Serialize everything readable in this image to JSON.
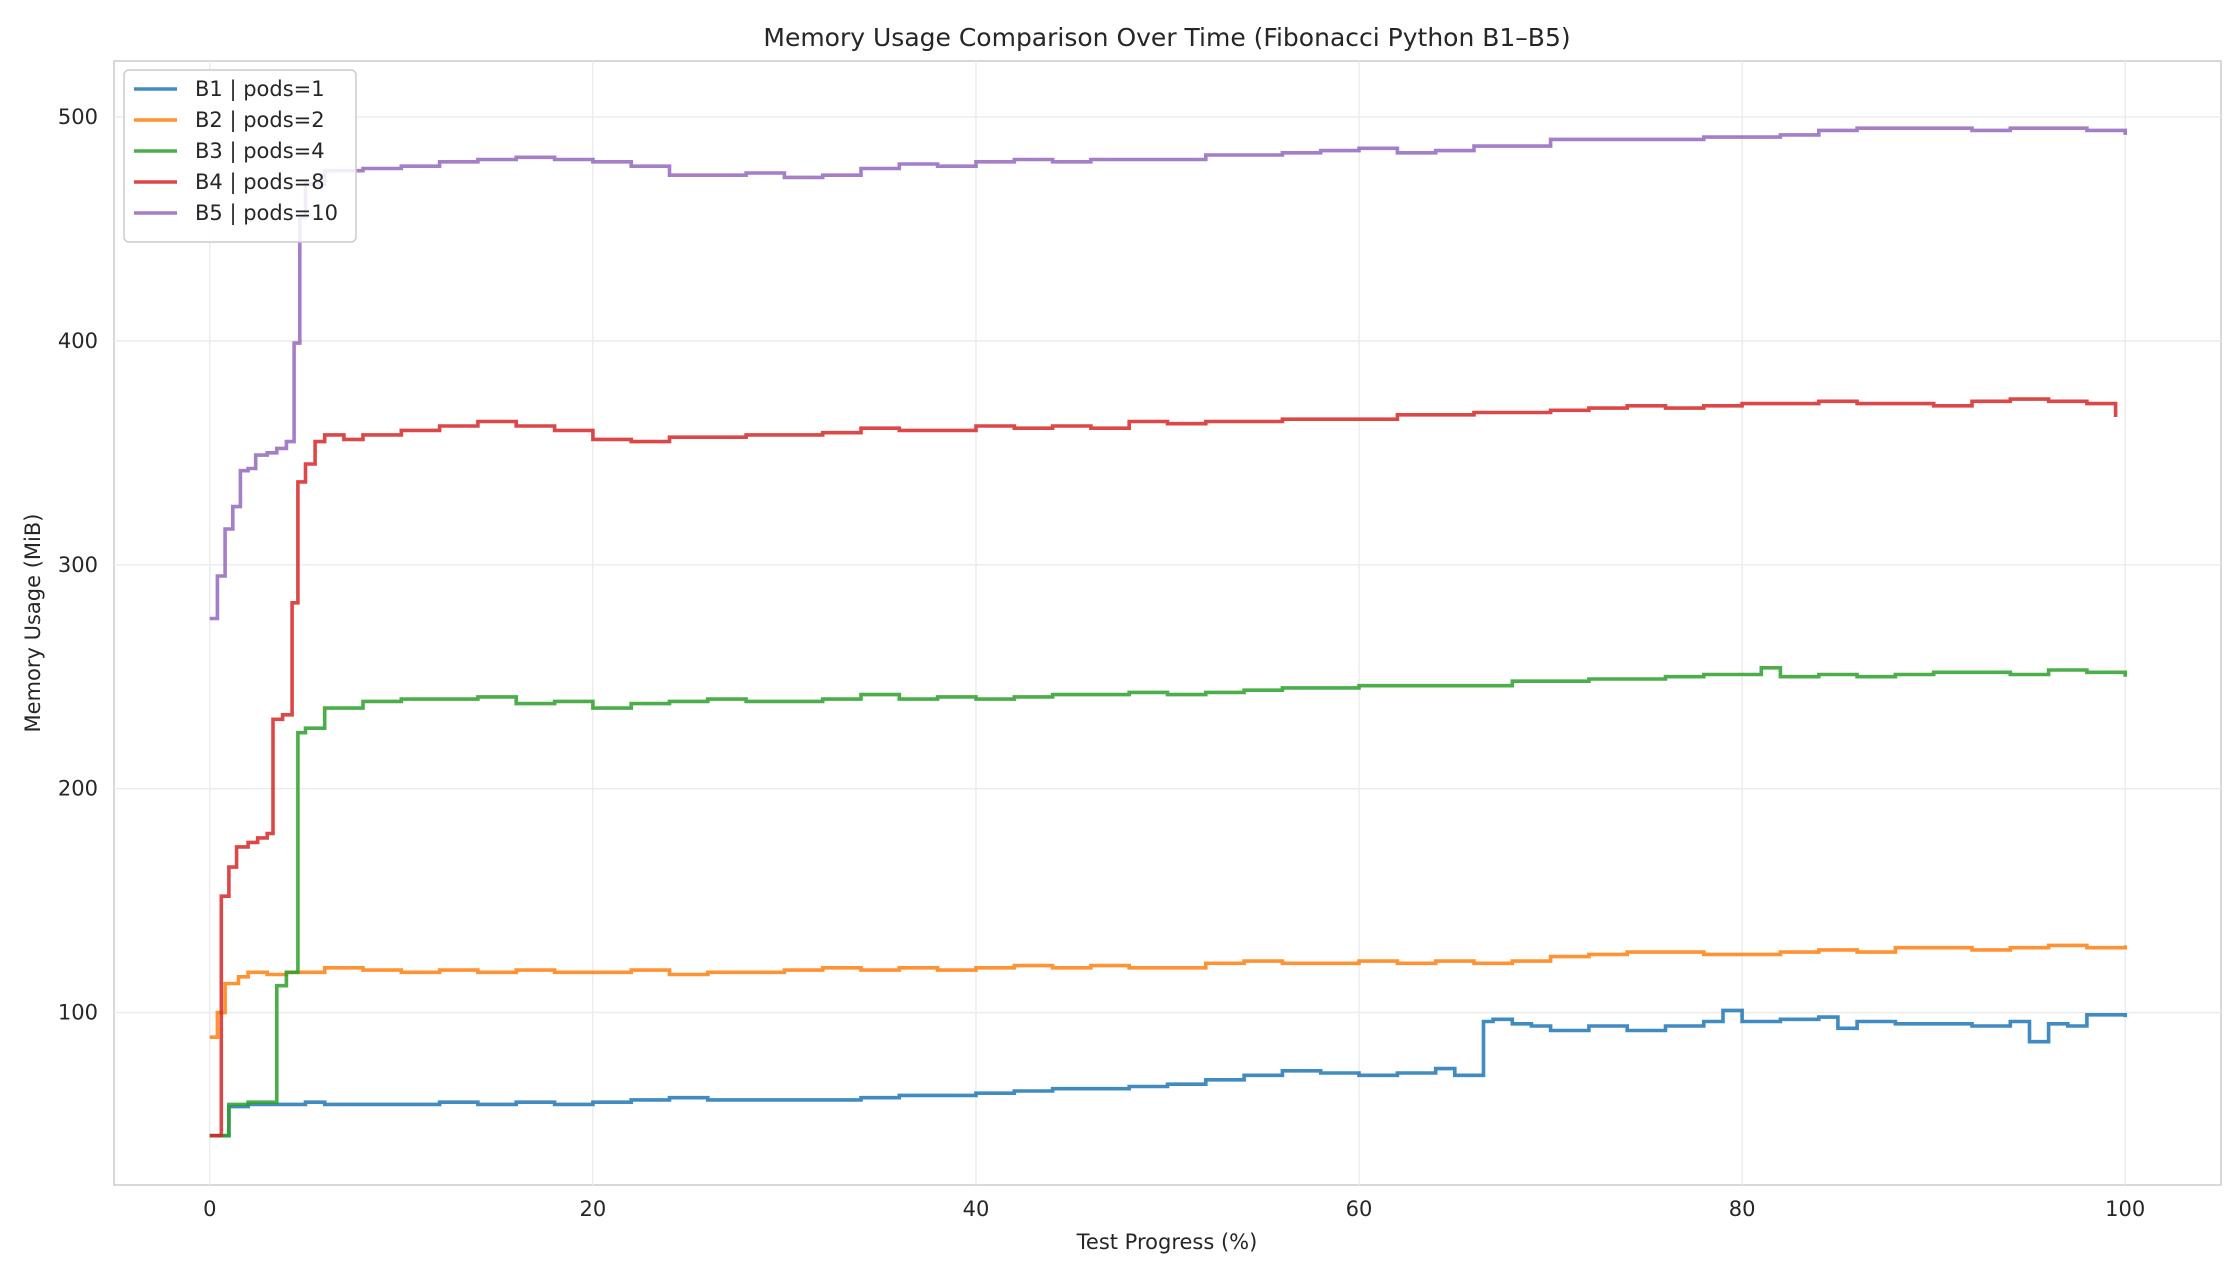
{
  "chart_data": {
    "type": "line",
    "title": "Memory Usage Comparison Over Time (Fibonacci Python B1–B5)",
    "xlabel": "Test Progress (%)",
    "ylabel": "Memory Usage (MiB)",
    "xlim": [
      -5,
      105
    ],
    "ylim": [
      23,
      525
    ],
    "x_ticks": [
      0,
      20,
      40,
      60,
      80,
      100
    ],
    "y_ticks": [
      100,
      200,
      300,
      400,
      500
    ],
    "grid": true,
    "legend_position": "top-left",
    "step": true,
    "series": [
      {
        "name": "B1 | pods=1",
        "color": "#1f77b4",
        "x": [
          0,
          0.5,
          1,
          2,
          3,
          4,
          5,
          6,
          8,
          10,
          12,
          14,
          16,
          18,
          20,
          22,
          24,
          26,
          28,
          30,
          32,
          34,
          36,
          38,
          40,
          42,
          44,
          46,
          48,
          50,
          52,
          54,
          56,
          58,
          60,
          62,
          64,
          65,
          66,
          66.5,
          67,
          68,
          69,
          70,
          72,
          74,
          76,
          78,
          79,
          80,
          82,
          84,
          85,
          86,
          88,
          90,
          92,
          94,
          95,
          96,
          97,
          98,
          100
        ],
        "values": [
          45,
          45,
          58,
          59,
          59,
          59,
          60,
          59,
          59,
          59,
          60,
          59,
          60,
          59,
          60,
          61,
          62,
          61,
          61,
          61,
          61,
          62,
          63,
          63,
          64,
          65,
          66,
          66,
          67,
          68,
          70,
          72,
          74,
          73,
          72,
          73,
          75,
          72,
          72,
          96,
          97,
          95,
          94,
          92,
          94,
          92,
          94,
          96,
          101,
          96,
          97,
          98,
          93,
          96,
          95,
          95,
          94,
          96,
          87,
          95,
          94,
          99,
          98
        ]
      },
      {
        "name": "B2 | pods=2",
        "color": "#ff7f0e",
        "x": [
          0,
          0.4,
          0.8,
          1.5,
          2,
          3,
          4,
          6,
          8,
          10,
          12,
          14,
          16,
          18,
          20,
          22,
          24,
          26,
          28,
          30,
          32,
          34,
          36,
          38,
          40,
          42,
          44,
          46,
          48,
          50,
          52,
          54,
          56,
          58,
          60,
          62,
          64,
          66,
          68,
          70,
          72,
          74,
          76,
          78,
          80,
          82,
          84,
          86,
          88,
          90,
          92,
          94,
          96,
          98,
          100
        ],
        "values": [
          89,
          100,
          113,
          116,
          118,
          117,
          118,
          120,
          119,
          118,
          119,
          118,
          119,
          118,
          118,
          119,
          117,
          118,
          118,
          119,
          120,
          119,
          120,
          119,
          120,
          121,
          120,
          121,
          120,
          120,
          122,
          123,
          122,
          122,
          123,
          122,
          123,
          122,
          123,
          125,
          126,
          127,
          127,
          126,
          126,
          127,
          128,
          127,
          129,
          129,
          128,
          129,
          130,
          129,
          130
        ]
      },
      {
        "name": "B3 | pods=4",
        "color": "#2ca02c",
        "x": [
          0,
          0.5,
          1,
          2,
          3,
          3.5,
          4,
          4.2,
          4.6,
          5,
          6,
          8,
          10,
          12,
          14,
          16,
          18,
          20,
          22,
          24,
          26,
          28,
          30,
          32,
          34,
          36,
          38,
          40,
          42,
          44,
          46,
          48,
          50,
          52,
          54,
          56,
          58,
          60,
          62,
          64,
          66,
          68,
          70,
          72,
          74,
          76,
          78,
          80,
          81,
          82,
          84,
          86,
          88,
          90,
          92,
          94,
          96,
          98,
          100
        ],
        "values": [
          45,
          45,
          59,
          60,
          60,
          112,
          118,
          118,
          225,
          227,
          236,
          239,
          240,
          240,
          241,
          238,
          239,
          236,
          238,
          239,
          240,
          239,
          239,
          240,
          242,
          240,
          241,
          240,
          241,
          242,
          242,
          243,
          242,
          243,
          244,
          245,
          245,
          246,
          246,
          246,
          246,
          248,
          248,
          249,
          249,
          250,
          251,
          251,
          254,
          250,
          251,
          250,
          251,
          252,
          252,
          251,
          253,
          252,
          250
        ]
      },
      {
        "name": "B4 | pods=8",
        "color": "#d62728",
        "x": [
          0,
          0.3,
          0.6,
          1,
          1.4,
          2,
          2.5,
          3,
          3.3,
          3.8,
          4.3,
          4.6,
          5,
          5.5,
          6,
          7,
          8,
          10,
          12,
          14,
          16,
          18,
          20,
          22,
          24,
          26,
          28,
          30,
          32,
          34,
          36,
          38,
          40,
          42,
          44,
          46,
          48,
          50,
          52,
          54,
          56,
          58,
          60,
          62,
          64,
          66,
          68,
          70,
          72,
          74,
          76,
          78,
          80,
          82,
          84,
          86,
          88,
          90,
          92,
          94,
          96,
          98,
          99.5
        ],
        "values": [
          45,
          45,
          152,
          165,
          174,
          176,
          178,
          180,
          231,
          233,
          283,
          337,
          345,
          355,
          358,
          356,
          358,
          360,
          362,
          364,
          362,
          360,
          356,
          355,
          357,
          357,
          358,
          358,
          359,
          361,
          360,
          360,
          362,
          361,
          362,
          361,
          364,
          363,
          364,
          364,
          365,
          365,
          365,
          367,
          367,
          368,
          368,
          369,
          370,
          371,
          370,
          371,
          372,
          372,
          373,
          372,
          372,
          371,
          373,
          374,
          373,
          372,
          366
        ]
      },
      {
        "name": "B5 | pods=10",
        "color": "#9467bd",
        "x": [
          0,
          0.4,
          0.8,
          1.2,
          1.6,
          2,
          2.4,
          3,
          3.5,
          4,
          4.4,
          4.7,
          5,
          6,
          8,
          10,
          12,
          14,
          16,
          18,
          20,
          22,
          24,
          26,
          28,
          30,
          32,
          34,
          36,
          38,
          40,
          42,
          44,
          46,
          48,
          50,
          52,
          54,
          56,
          58,
          60,
          62,
          64,
          66,
          68,
          70,
          72,
          74,
          76,
          78,
          80,
          82,
          84,
          86,
          88,
          90,
          92,
          94,
          96,
          98,
          100
        ],
        "values": [
          276,
          295,
          316,
          326,
          342,
          343,
          349,
          350,
          352,
          355,
          399,
          455,
          470,
          476,
          477,
          478,
          480,
          481,
          482,
          481,
          480,
          478,
          474,
          474,
          475,
          473,
          474,
          477,
          479,
          478,
          480,
          481,
          480,
          481,
          481,
          481,
          483,
          483,
          484,
          485,
          486,
          484,
          485,
          487,
          487,
          490,
          490,
          490,
          490,
          491,
          491,
          492,
          494,
          495,
          495,
          495,
          494,
          495,
          495,
          494,
          492
        ]
      }
    ]
  }
}
